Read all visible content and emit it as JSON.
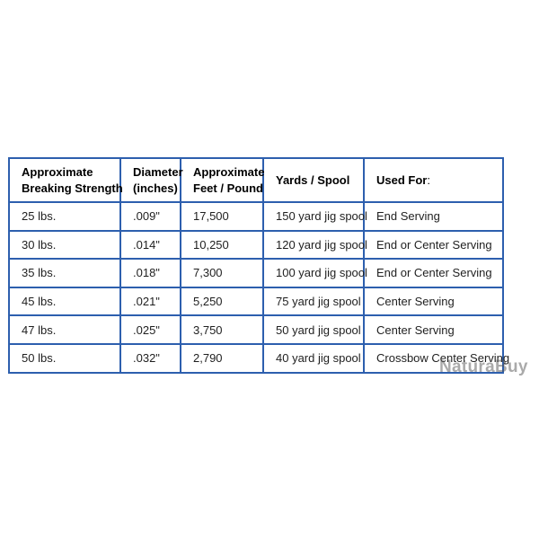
{
  "colors": {
    "table_border": "#2d5fae",
    "header_text": "#000000",
    "cell_text": "#1f1f1f",
    "watermark": "#555555"
  },
  "watermark": {
    "text": "NaturaBuy"
  },
  "table": {
    "header": [
      {
        "lines": [
          "Approximate",
          "Breaking Strength"
        ],
        "suffix": ""
      },
      {
        "lines": [
          "Diameter",
          "(inches)"
        ],
        "suffix": ""
      },
      {
        "lines": [
          "Approximate",
          "Feet / Pound"
        ],
        "suffix": ""
      },
      {
        "lines": [
          "Yards / Spool"
        ],
        "suffix": ""
      },
      {
        "lines": [
          "Used For"
        ],
        "suffix": ":"
      }
    ]
  },
  "chart_data": {
    "type": "table",
    "title": "",
    "columns": [
      "Approximate Breaking Strength",
      "Diameter (inches)",
      "Approximate Feet / Pound",
      "Yards / Spool",
      "Used For:"
    ],
    "rows": [
      [
        "25 lbs.",
        ".009\"",
        "17,500",
        "150 yard jig spool",
        "End Serving"
      ],
      [
        "30 lbs.",
        ".014\"",
        "10,250",
        "120 yard jig spool",
        "End or Center Serving"
      ],
      [
        "35 lbs.",
        ".018\"",
        "7,300",
        "100 yard jig spool",
        "End or Center Serving"
      ],
      [
        "45 lbs.",
        ".021\"",
        "5,250",
        "75 yard jig spool",
        "Center Serving"
      ],
      [
        "47 lbs.",
        ".025\"",
        "3,750",
        "50 yard jig spool",
        "Center Serving"
      ],
      [
        "50 lbs.",
        ".032\"",
        "2,790",
        "40 yard jig spool",
        "Crossbow Center Serving"
      ]
    ]
  }
}
